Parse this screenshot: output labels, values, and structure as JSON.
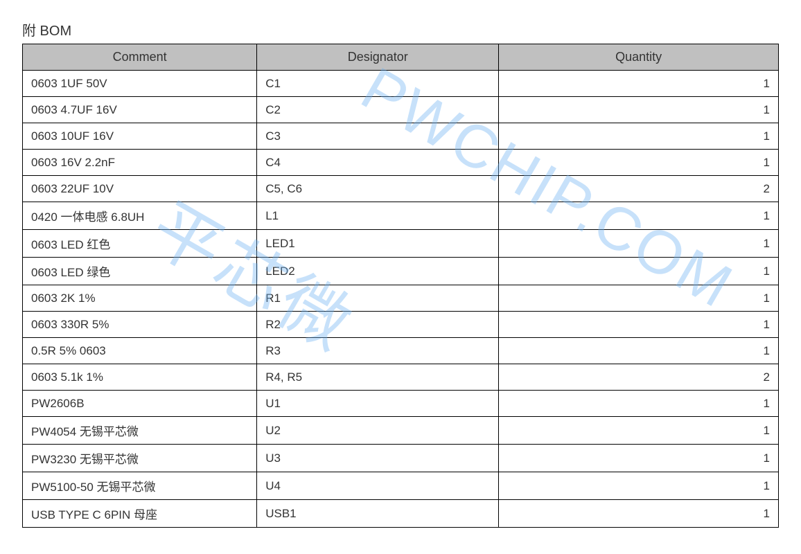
{
  "title": "附 BOM",
  "headers": {
    "comment": "Comment",
    "designator": "Designator",
    "quantity": "Quantity"
  },
  "rows": [
    {
      "comment": "0603 1UF   50V",
      "designator": "C1",
      "quantity": "1"
    },
    {
      "comment": "0603 4.7UF   16V",
      "designator": "C2",
      "quantity": "1"
    },
    {
      "comment": "0603 10UF 16V",
      "designator": "C3",
      "quantity": "1"
    },
    {
      "comment": "0603 16V 2.2nF",
      "designator": "C4",
      "quantity": "1"
    },
    {
      "comment": "0603 22UF   10V",
      "designator": "C5, C6",
      "quantity": "2"
    },
    {
      "comment": "0420 一体电感 6.8UH",
      "designator": "L1",
      "quantity": "1"
    },
    {
      "comment": "0603 LED  红色",
      "designator": "LED1",
      "quantity": "1"
    },
    {
      "comment": "0603 LED  绿色",
      "designator": "LED2",
      "quantity": "1"
    },
    {
      "comment": "0603 2K 1%",
      "designator": "R1",
      "quantity": "1"
    },
    {
      "comment": "0603 330R 5%",
      "designator": "R2",
      "quantity": "1"
    },
    {
      "comment": "0.5R 5% 0603",
      "designator": "R3",
      "quantity": "1"
    },
    {
      "comment": "0603 5.1k 1%",
      "designator": "R4, R5",
      "quantity": "2"
    },
    {
      "comment": "PW2606B",
      "designator": "U1",
      "quantity": "1"
    },
    {
      "comment": "PW4054 无锡平芯微",
      "designator": "U2",
      "quantity": "1"
    },
    {
      "comment": "PW3230 无锡平芯微",
      "designator": "U3",
      "quantity": "1"
    },
    {
      "comment": "PW5100-50 无锡平芯微",
      "designator": "U4",
      "quantity": "1"
    },
    {
      "comment": "USB TYPE C 6PIN 母座",
      "designator": "USB1",
      "quantity": "1"
    }
  ],
  "watermark": {
    "text1": "平芯微",
    "text2": "PWCHIP.COM"
  },
  "styling": {
    "header_bg": "#c0c0c0",
    "border_color": "#000000",
    "text_color": "#333333",
    "watermark_color": "#6db3f2",
    "font_family": "Microsoft YaHei"
  }
}
